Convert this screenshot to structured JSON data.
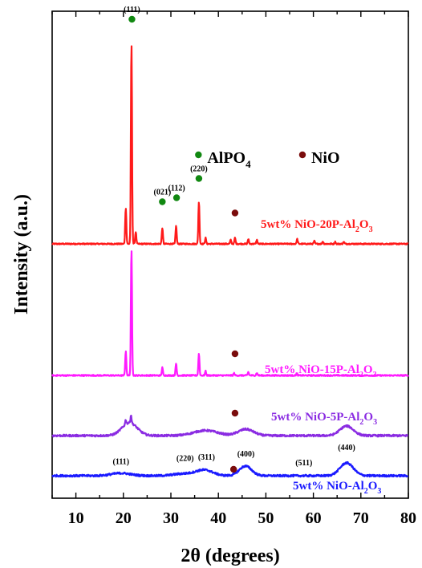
{
  "chart_data": {
    "type": "line",
    "xlabel": "2θ (degrees)",
    "ylabel": "Intensity (a.u.)",
    "xlim": [
      5,
      80
    ],
    "x_ticks": [
      10,
      20,
      30,
      40,
      50,
      60,
      70,
      80
    ],
    "y_ticks_shown": false,
    "grid": false,
    "colors": {
      "npal20": "#ff1a1a",
      "npal15": "#ff1aff",
      "npal5": "#8a2be2",
      "nial": "#1a1aff",
      "alpo4_marker": "#118811",
      "nio_marker": "#7a0c0c"
    },
    "series": [
      {
        "key": "npal20",
        "name_main": "5wt% NiO-20P-Al",
        "name_sub2": "2",
        "name_mid": "O",
        "name_sub3": "3",
        "baseline": 0.58,
        "broad": [],
        "peaks": [
          [
            20.5,
            0.9
          ],
          [
            21.7,
            5.0
          ],
          [
            22.6,
            0.3
          ],
          [
            28.2,
            0.4
          ],
          [
            31.1,
            0.45
          ],
          [
            35.9,
            1.05
          ],
          [
            37.3,
            0.15
          ],
          [
            42.6,
            0.1
          ],
          [
            43.5,
            0.15
          ],
          [
            46.3,
            0.12
          ],
          [
            48.1,
            0.1
          ],
          [
            56.6,
            0.12
          ],
          [
            60.2,
            0.07
          ],
          [
            62.0,
            0.06
          ],
          [
            64.6,
            0.05
          ],
          [
            66.4,
            0.05
          ]
        ]
      },
      {
        "key": "npal15",
        "name_main": "5wt% NiO-15P-Al",
        "name_sub2": "2",
        "name_mid": "O",
        "name_sub3": "3",
        "baseline": 0.4,
        "broad": [],
        "peaks": [
          [
            20.5,
            0.55
          ],
          [
            21.7,
            2.9
          ],
          [
            28.2,
            0.18
          ],
          [
            31.1,
            0.27
          ],
          [
            35.9,
            0.5
          ],
          [
            37.3,
            0.1
          ],
          [
            43.3,
            0.05
          ],
          [
            46.3,
            0.08
          ],
          [
            48.1,
            0.06
          ],
          [
            56.5,
            0.05
          ]
        ]
      },
      {
        "key": "npal5",
        "name_main": "5wt% NiO-5P-Al",
        "name_sub2": "2",
        "name_mid": "O",
        "name_sub3": "3",
        "baseline": 0.12,
        "broad": [
          [
            21.3,
            1.6,
            0.2
          ],
          [
            37.3,
            2.5,
            0.08
          ],
          [
            45.8,
            1.6,
            0.1
          ],
          [
            67.0,
            1.4,
            0.15
          ]
        ],
        "peaks": [
          [
            20.5,
            0.07
          ],
          [
            21.6,
            0.12
          ]
        ]
      },
      {
        "key": "nial",
        "name_main": "5wt% NiO-Al",
        "name_sub2": "2",
        "name_mid": "O",
        "name_sub3": "3",
        "baseline": 0.05,
        "broad": [
          [
            19.5,
            2.0,
            0.04
          ],
          [
            32.5,
            2.0,
            0.03
          ],
          [
            37.0,
            1.8,
            0.09
          ],
          [
            45.7,
            1.3,
            0.15
          ],
          [
            67.0,
            1.4,
            0.2
          ]
        ],
        "peaks": []
      }
    ],
    "legend": [
      {
        "key": "alpo4",
        "label_main": "AlPO",
        "label_sub": "4"
      },
      {
        "key": "nio",
        "label_main": "NiO"
      }
    ],
    "annotations": {
      "npal20": [
        {
          "text": "(111)",
          "x": 21.8,
          "y": 5.6,
          "marker": "alpo4"
        },
        {
          "text": "(021)",
          "x": 28.2,
          "y": 1.05,
          "marker": "alpo4"
        },
        {
          "text": "(112)",
          "x": 31.2,
          "y": 1.15,
          "marker": "alpo4"
        },
        {
          "text": "(220)",
          "x": 35.9,
          "y": 1.63,
          "marker": "alpo4"
        },
        {
          "text": "",
          "x": 43.5,
          "y": 0.77,
          "marker": "nio"
        }
      ],
      "npal15": [
        {
          "text": "",
          "x": 43.5,
          "y": 0.5,
          "marker": "nio"
        }
      ],
      "npal5": [
        {
          "text": "",
          "x": 43.5,
          "y": 0.35,
          "marker": "nio"
        }
      ],
      "nial": [
        {
          "text": "(111)",
          "x": 19.5,
          "y": 0.18
        },
        {
          "text": "(220)",
          "x": 33.0,
          "y": 0.23
        },
        {
          "text": "(311)",
          "x": 37.5,
          "y": 0.25
        },
        {
          "text": "",
          "x": 43.2,
          "y": 0.1,
          "marker": "nio"
        },
        {
          "text": "(400)",
          "x": 45.8,
          "y": 0.3
        },
        {
          "text": "(511)",
          "x": 58.0,
          "y": 0.16
        },
        {
          "text": "(440)",
          "x": 67.0,
          "y": 0.4
        }
      ]
    }
  }
}
